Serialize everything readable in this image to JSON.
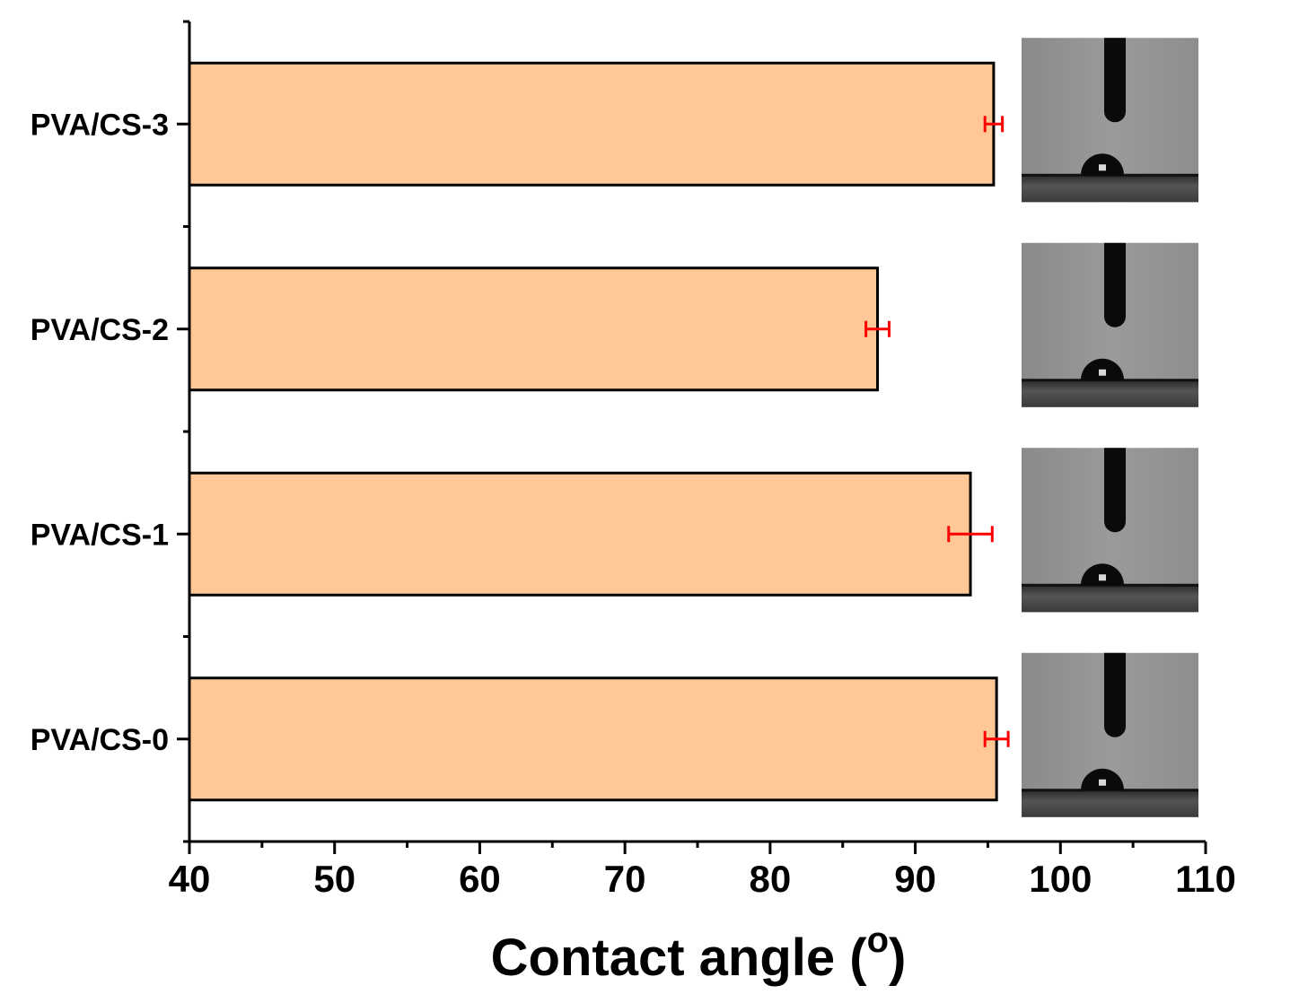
{
  "chart_data": {
    "type": "bar",
    "orientation": "horizontal",
    "categories": [
      "PVA/CS-0",
      "PVA/CS-1",
      "PVA/CS-2",
      "PVA/CS-3"
    ],
    "values": [
      95.6,
      93.8,
      87.4,
      95.4
    ],
    "errors": [
      0.8,
      1.5,
      0.8,
      0.6
    ],
    "xlabel": "Contact angle (",
    "xlabel_sup": "o",
    "xlabel_end": ")",
    "xlim": [
      40,
      110
    ],
    "xticks": [
      "40",
      "50",
      "60",
      "70",
      "80",
      "90",
      "100",
      "110"
    ],
    "bar_color": "#FFC896",
    "error_color": "#FF0000",
    "grid": false,
    "legend": "none",
    "insets": "water droplet contact-angle photographs beside each bar"
  }
}
